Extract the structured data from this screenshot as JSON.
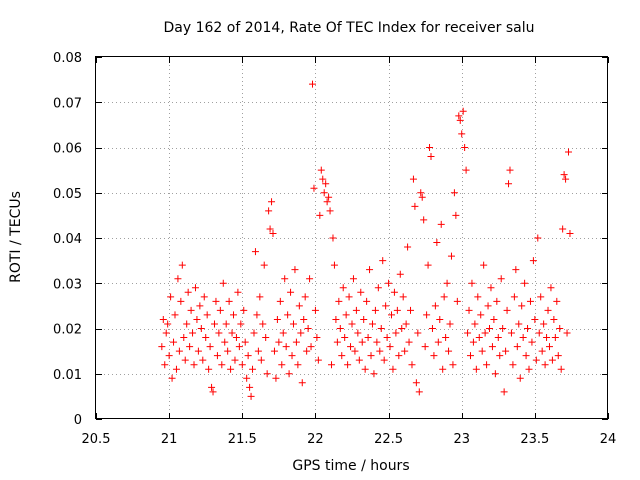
{
  "chart_data": {
    "type": "scatter",
    "title": "Day 162 of 2014, Rate Of TEC Index for receiver salu",
    "xlabel": "GPS time / hours",
    "ylabel": "ROTI / TECUs",
    "xlim": [
      20.5,
      24
    ],
    "ylim": [
      0,
      0.08
    ],
    "xticks": [
      20.5,
      21,
      21.5,
      22,
      22.5,
      23,
      23.5,
      24
    ],
    "xtick_labels": [
      "20.5",
      "21",
      "21.5",
      "22",
      "22.5",
      "23",
      "23.5",
      "24"
    ],
    "yticks": [
      0,
      0.01,
      0.02,
      0.03,
      0.04,
      0.05,
      0.06,
      0.07,
      0.08
    ],
    "ytick_labels": [
      "0",
      "0.01",
      "0.02",
      "0.03",
      "0.04",
      "0.05",
      "0.06",
      "0.07",
      "0.08"
    ],
    "grid": true,
    "marker": "+",
    "color": "#ff0000",
    "series": [
      {
        "name": "ROTI",
        "points": [
          [
            20.95,
            0.016
          ],
          [
            20.96,
            0.022
          ],
          [
            20.97,
            0.012
          ],
          [
            20.98,
            0.019
          ],
          [
            20.99,
            0.021
          ],
          [
            21.0,
            0.014
          ],
          [
            21.01,
            0.027
          ],
          [
            21.02,
            0.009
          ],
          [
            21.03,
            0.017
          ],
          [
            21.04,
            0.023
          ],
          [
            21.05,
            0.011
          ],
          [
            21.06,
            0.031
          ],
          [
            21.07,
            0.015
          ],
          [
            21.08,
            0.026
          ],
          [
            21.09,
            0.034
          ],
          [
            21.1,
            0.018
          ],
          [
            21.11,
            0.013
          ],
          [
            21.12,
            0.021
          ],
          [
            21.13,
            0.028
          ],
          [
            21.14,
            0.016
          ],
          [
            21.15,
            0.024
          ],
          [
            21.16,
            0.019
          ],
          [
            21.17,
            0.012
          ],
          [
            21.18,
            0.029
          ],
          [
            21.19,
            0.022
          ],
          [
            21.2,
            0.015
          ],
          [
            21.21,
            0.025
          ],
          [
            21.22,
            0.02
          ],
          [
            21.23,
            0.013
          ],
          [
            21.24,
            0.027
          ],
          [
            21.25,
            0.018
          ],
          [
            21.26,
            0.023
          ],
          [
            21.27,
            0.011
          ],
          [
            21.28,
            0.016
          ],
          [
            21.29,
            0.007
          ],
          [
            21.3,
            0.006
          ],
          [
            21.31,
            0.021
          ],
          [
            21.32,
            0.026
          ],
          [
            21.33,
            0.014
          ],
          [
            21.34,
            0.019
          ],
          [
            21.35,
            0.024
          ],
          [
            21.36,
            0.012
          ],
          [
            21.37,
            0.03
          ],
          [
            21.38,
            0.017
          ],
          [
            21.39,
            0.021
          ],
          [
            21.4,
            0.015
          ],
          [
            21.41,
            0.026
          ],
          [
            21.42,
            0.011
          ],
          [
            21.43,
            0.019
          ],
          [
            21.44,
            0.023
          ],
          [
            21.45,
            0.013
          ],
          [
            21.46,
            0.018
          ],
          [
            21.47,
            0.028
          ],
          [
            21.48,
            0.016
          ],
          [
            21.49,
            0.021
          ],
          [
            21.5,
            0.012
          ],
          [
            21.51,
            0.024
          ],
          [
            21.52,
            0.017
          ],
          [
            21.53,
            0.009
          ],
          [
            21.54,
            0.014
          ],
          [
            21.55,
            0.007
          ],
          [
            21.56,
            0.005
          ],
          [
            21.57,
            0.011
          ],
          [
            21.58,
            0.019
          ],
          [
            21.59,
            0.037
          ],
          [
            21.6,
            0.023
          ],
          [
            21.61,
            0.015
          ],
          [
            21.62,
            0.027
          ],
          [
            21.63,
            0.013
          ],
          [
            21.64,
            0.021
          ],
          [
            21.65,
            0.034
          ],
          [
            21.66,
            0.018
          ],
          [
            21.67,
            0.01
          ],
          [
            21.68,
            0.046
          ],
          [
            21.69,
            0.042
          ],
          [
            21.7,
            0.048
          ],
          [
            21.71,
            0.041
          ],
          [
            21.72,
            0.015
          ],
          [
            21.73,
            0.009
          ],
          [
            21.74,
            0.022
          ],
          [
            21.75,
            0.017
          ],
          [
            21.76,
            0.026
          ],
          [
            21.77,
            0.012
          ],
          [
            21.78,
            0.019
          ],
          [
            21.79,
            0.031
          ],
          [
            21.8,
            0.016
          ],
          [
            21.81,
            0.023
          ],
          [
            21.82,
            0.01
          ],
          [
            21.83,
            0.028
          ],
          [
            21.84,
            0.014
          ],
          [
            21.85,
            0.021
          ],
          [
            21.86,
            0.033
          ],
          [
            21.87,
            0.017
          ],
          [
            21.88,
            0.012
          ],
          [
            21.89,
            0.025
          ],
          [
            21.9,
            0.019
          ],
          [
            21.91,
            0.008
          ],
          [
            21.92,
            0.022
          ],
          [
            21.93,
            0.027
          ],
          [
            21.94,
            0.015
          ],
          [
            21.95,
            0.02
          ],
          [
            21.96,
            0.031
          ],
          [
            21.97,
            0.016
          ],
          [
            21.98,
            0.074
          ],
          [
            21.99,
            0.051
          ],
          [
            22.0,
            0.024
          ],
          [
            22.01,
            0.018
          ],
          [
            22.02,
            0.013
          ],
          [
            22.03,
            0.045
          ],
          [
            22.04,
            0.055
          ],
          [
            22.05,
            0.053
          ],
          [
            22.06,
            0.05
          ],
          [
            22.07,
            0.052
          ],
          [
            22.08,
            0.048
          ],
          [
            22.09,
            0.049
          ],
          [
            22.1,
            0.046
          ],
          [
            22.11,
            0.012
          ],
          [
            22.12,
            0.04
          ],
          [
            22.13,
            0.034
          ],
          [
            22.14,
            0.022
          ],
          [
            22.15,
            0.017
          ],
          [
            22.16,
            0.026
          ],
          [
            22.17,
            0.02
          ],
          [
            22.18,
            0.014
          ],
          [
            22.19,
            0.029
          ],
          [
            22.2,
            0.018
          ],
          [
            22.21,
            0.023
          ],
          [
            22.22,
            0.012
          ],
          [
            22.23,
            0.027
          ],
          [
            22.24,
            0.016
          ],
          [
            22.25,
            0.021
          ],
          [
            22.26,
            0.031
          ],
          [
            22.27,
            0.015
          ],
          [
            22.28,
            0.024
          ],
          [
            22.29,
            0.019
          ],
          [
            22.3,
            0.013
          ],
          [
            22.31,
            0.028
          ],
          [
            22.32,
            0.017
          ],
          [
            22.33,
            0.022
          ],
          [
            22.34,
            0.011
          ],
          [
            22.35,
            0.026
          ],
          [
            22.36,
            0.018
          ],
          [
            22.37,
            0.033
          ],
          [
            22.38,
            0.014
          ],
          [
            22.39,
            0.021
          ],
          [
            22.4,
            0.01
          ],
          [
            22.41,
            0.024
          ],
          [
            22.42,
            0.017
          ],
          [
            22.43,
            0.029
          ],
          [
            22.44,
            0.015
          ],
          [
            22.45,
            0.02
          ],
          [
            22.46,
            0.035
          ],
          [
            22.47,
            0.013
          ],
          [
            22.48,
            0.025
          ],
          [
            22.49,
            0.018
          ],
          [
            22.5,
            0.03
          ],
          [
            22.51,
            0.016
          ],
          [
            22.52,
            0.023
          ],
          [
            22.53,
            0.011
          ],
          [
            22.54,
            0.028
          ],
          [
            22.55,
            0.019
          ],
          [
            22.56,
            0.024
          ],
          [
            22.57,
            0.014
          ],
          [
            22.58,
            0.032
          ],
          [
            22.59,
            0.02
          ],
          [
            22.6,
            0.027
          ],
          [
            22.61,
            0.015
          ],
          [
            22.62,
            0.021
          ],
          [
            22.63,
            0.038
          ],
          [
            22.64,
            0.017
          ],
          [
            22.65,
            0.024
          ],
          [
            22.66,
            0.012
          ],
          [
            22.67,
            0.053
          ],
          [
            22.68,
            0.047
          ],
          [
            22.69,
            0.008
          ],
          [
            22.7,
            0.019
          ],
          [
            22.71,
            0.006
          ],
          [
            22.72,
            0.05
          ],
          [
            22.73,
            0.049
          ],
          [
            22.74,
            0.044
          ],
          [
            22.75,
            0.016
          ],
          [
            22.76,
            0.023
          ],
          [
            22.77,
            0.034
          ],
          [
            22.78,
            0.06
          ],
          [
            22.79,
            0.058
          ],
          [
            22.8,
            0.02
          ],
          [
            22.81,
            0.014
          ],
          [
            22.82,
            0.025
          ],
          [
            22.83,
            0.039
          ],
          [
            22.84,
            0.017
          ],
          [
            22.85,
            0.022
          ],
          [
            22.86,
            0.043
          ],
          [
            22.87,
            0.011
          ],
          [
            22.88,
            0.027
          ],
          [
            22.89,
            0.018
          ],
          [
            22.9,
            0.03
          ],
          [
            22.91,
            0.015
          ],
          [
            22.92,
            0.021
          ],
          [
            22.93,
            0.036
          ],
          [
            22.94,
            0.012
          ],
          [
            22.95,
            0.05
          ],
          [
            22.96,
            0.045
          ],
          [
            22.97,
            0.026
          ],
          [
            22.98,
            0.067
          ],
          [
            22.99,
            0.066
          ],
          [
            23.0,
            0.063
          ],
          [
            23.01,
            0.068
          ],
          [
            23.02,
            0.06
          ],
          [
            23.03,
            0.055
          ],
          [
            23.04,
            0.019
          ],
          [
            23.05,
            0.024
          ],
          [
            23.06,
            0.014
          ],
          [
            23.07,
            0.03
          ],
          [
            23.08,
            0.017
          ],
          [
            23.09,
            0.021
          ],
          [
            23.1,
            0.011
          ],
          [
            23.11,
            0.027
          ],
          [
            23.12,
            0.018
          ],
          [
            23.13,
            0.023
          ],
          [
            23.14,
            0.015
          ],
          [
            23.15,
            0.034
          ],
          [
            23.16,
            0.019
          ],
          [
            23.17,
            0.012
          ],
          [
            23.18,
            0.025
          ],
          [
            23.19,
            0.02
          ],
          [
            23.2,
            0.029
          ],
          [
            23.21,
            0.016
          ],
          [
            23.22,
            0.022
          ],
          [
            23.23,
            0.01
          ],
          [
            23.24,
            0.026
          ],
          [
            23.25,
            0.018
          ],
          [
            23.26,
            0.014
          ],
          [
            23.27,
            0.031
          ],
          [
            23.28,
            0.02
          ],
          [
            23.29,
            0.006
          ],
          [
            23.3,
            0.015
          ],
          [
            23.31,
            0.024
          ],
          [
            23.32,
            0.052
          ],
          [
            23.33,
            0.055
          ],
          [
            23.34,
            0.019
          ],
          [
            23.35,
            0.012
          ],
          [
            23.36,
            0.027
          ],
          [
            23.37,
            0.033
          ],
          [
            23.38,
            0.016
          ],
          [
            23.39,
            0.021
          ],
          [
            23.4,
            0.009
          ],
          [
            23.41,
            0.025
          ],
          [
            23.42,
            0.018
          ],
          [
            23.43,
            0.03
          ],
          [
            23.44,
            0.014
          ],
          [
            23.45,
            0.02
          ],
          [
            23.46,
            0.011
          ],
          [
            23.47,
            0.026
          ],
          [
            23.48,
            0.017
          ],
          [
            23.49,
            0.035
          ],
          [
            23.5,
            0.022
          ],
          [
            23.51,
            0.013
          ],
          [
            23.52,
            0.04
          ],
          [
            23.53,
            0.019
          ],
          [
            23.54,
            0.027
          ],
          [
            23.55,
            0.015
          ],
          [
            23.56,
            0.021
          ],
          [
            23.57,
            0.012
          ],
          [
            23.58,
            0.018
          ],
          [
            23.59,
            0.024
          ],
          [
            23.6,
            0.016
          ],
          [
            23.61,
            0.029
          ],
          [
            23.62,
            0.013
          ],
          [
            23.63,
            0.022
          ],
          [
            23.64,
            0.018
          ],
          [
            23.65,
            0.026
          ],
          [
            23.66,
            0.014
          ],
          [
            23.67,
            0.02
          ],
          [
            23.68,
            0.011
          ],
          [
            23.69,
            0.042
          ],
          [
            23.7,
            0.054
          ],
          [
            23.71,
            0.053
          ],
          [
            23.72,
            0.019
          ],
          [
            23.73,
            0.059
          ],
          [
            23.74,
            0.041
          ]
        ]
      }
    ]
  }
}
